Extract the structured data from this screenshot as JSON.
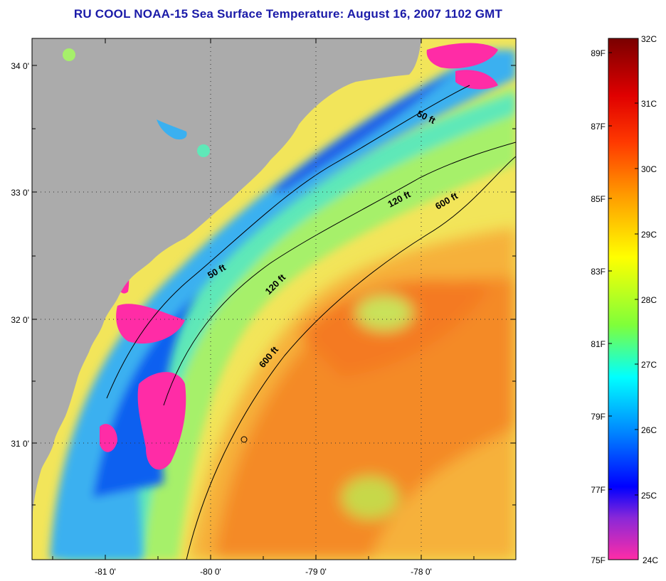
{
  "title": "RU COOL  NOAA-15  Sea Surface Temperature:  August 16, 2007 1102 GMT",
  "map": {
    "lat_ticks": [
      "34 0'",
      "33 0'",
      "32 0'",
      "31 0'"
    ],
    "lon_ticks": [
      "-81 0'",
      "-80 0'",
      "-79 0'",
      "-78 0'"
    ],
    "contours": [
      {
        "depth": "50 ft",
        "labels": [
          "50 ft",
          "50 ft"
        ]
      },
      {
        "depth": "120 ft",
        "labels": [
          "120 ft",
          "120 ft"
        ]
      },
      {
        "depth": "600 ft",
        "labels": [
          "600 ft",
          "600 ft"
        ]
      }
    ],
    "land_color": "#ababab",
    "cloud_color": "#ff2ca6"
  },
  "colorbar": {
    "fahrenheit": [
      "89F",
      "87F",
      "85F",
      "83F",
      "81F",
      "79F",
      "77F",
      "75F"
    ],
    "celsius": [
      "32C",
      "31C",
      "30C",
      "29C",
      "28C",
      "27C",
      "26C",
      "25C",
      "24C"
    ],
    "colors_top_to_bottom": [
      "#7a0000",
      "#ff0000",
      "#ff7a00",
      "#ffff00",
      "#7fff00",
      "#00ffff",
      "#0060ff",
      "#0000ff",
      "#9a00ff",
      "#ff2ca6"
    ]
  }
}
